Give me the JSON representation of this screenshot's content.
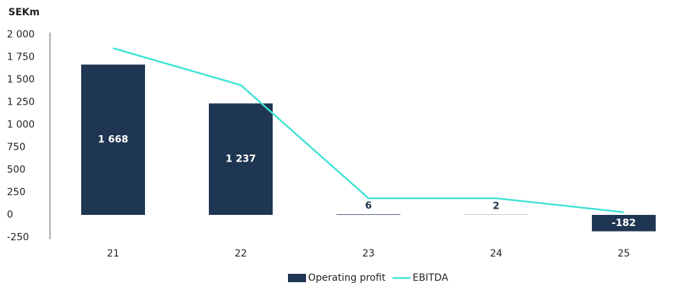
{
  "chart_data": {
    "type": "bar",
    "unit_label": "SEKm",
    "categories": [
      "21",
      "22",
      "23",
      "24",
      "25"
    ],
    "series": [
      {
        "name": "Operating profit",
        "type": "bar",
        "color": "#1f3652",
        "values": [
          1668,
          1237,
          6,
          2,
          -182
        ],
        "value_labels": [
          "1 668",
          "1 237",
          "6",
          "2",
          "-182"
        ]
      },
      {
        "name": "EBITDA",
        "type": "line",
        "color": "#3ee3d3",
        "values": [
          1850,
          1440,
          185,
          185,
          30
        ]
      }
    ],
    "ylim": [
      -250,
      2000
    ],
    "yticks": [
      -250,
      0,
      250,
      500,
      750,
      {
        "value": 1000,
        "label": "1 000"
      },
      {
        "value": 1250,
        "label": "1 250"
      },
      {
        "value": 1500,
        "label": "1 500"
      },
      {
        "value": 1750,
        "label": "1 750"
      },
      {
        "value": 2000,
        "label": "2 000"
      }
    ],
    "grid": false,
    "legend": "bottom"
  }
}
